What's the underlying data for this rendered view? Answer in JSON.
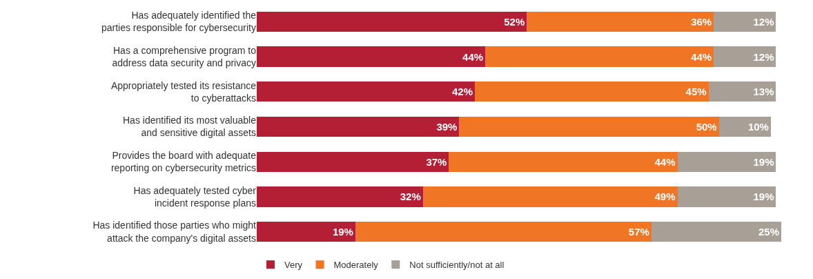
{
  "chart_data": {
    "type": "bar",
    "orientation": "horizontal",
    "stacked": true,
    "legend": "bottom",
    "categories": [
      "Has adequately identified the\nparties responsible for cybersecurity",
      "Has a comprehensive program to\naddress data security and privacy",
      "Appropriately tested its resistance\nto cyberattacks",
      "Has identified its most valuable\nand sensitive digital assets",
      "Provides the board with adequate\nreporting on cybersecurity metrics",
      "Has adequately tested cyber\nincident response plans",
      "Has identified those parties who might\nattack the company's digital assets"
    ],
    "series": [
      {
        "name": "Very",
        "color": "#b41f35",
        "values": [
          52,
          44,
          42,
          39,
          37,
          32,
          19
        ],
        "value_labels": [
          "52%",
          "44%",
          "42%",
          "39%",
          "37%",
          "32%",
          "19%"
        ]
      },
      {
        "name": "Moderately",
        "color": "#f07524",
        "values": [
          36,
          44,
          45,
          50,
          44,
          49,
          57
        ],
        "value_labels": [
          "36%",
          "44%",
          "45%",
          "50%",
          "44%",
          "49%",
          "57%"
        ]
      },
      {
        "name": "Not sufficiently/not at all",
        "color": "#a89f97",
        "values": [
          12,
          12,
          13,
          10,
          19,
          19,
          25
        ],
        "value_labels": [
          "12%",
          "12%",
          "13%",
          "10%",
          "19%",
          "19%",
          "25%"
        ]
      }
    ]
  }
}
